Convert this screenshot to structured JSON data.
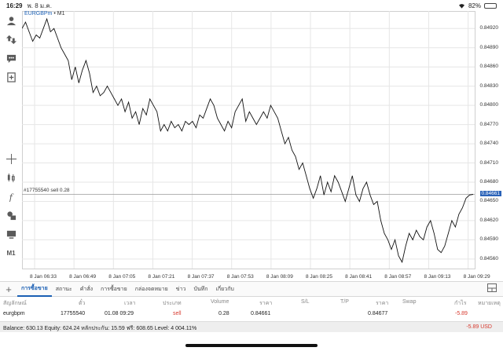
{
  "statusbar": {
    "time": "16:29",
    "date": "พ. 8 ม.ค.",
    "battery": "82%",
    "battery_level": 0.82
  },
  "left_toolbar": {
    "icons": [
      "user-icon",
      "transfer-icon",
      "chat-icon",
      "add-chart-icon",
      "crosshair-icon",
      "candles-icon",
      "function-icon",
      "objects-icon",
      "chart-type-icon"
    ],
    "timeframe": "M1"
  },
  "chart": {
    "symbol": "EURGBPm",
    "separator": "•",
    "timeframe": "M1",
    "order_label": "#17755540 sell 0.28",
    "current_price": "0.84661",
    "line_color": "#111111",
    "grid_color": "#e6e6e6"
  },
  "chart_data": {
    "type": "line",
    "title": "",
    "xlabel": "",
    "ylabel": "",
    "ylim": [
      0.8455,
      0.8494
    ],
    "y_ticks": [
      "0.84920",
      "0.84890",
      "0.84860",
      "0.84830",
      "0.84800",
      "0.84770",
      "0.84740",
      "0.84710",
      "0.84680",
      "0.84650",
      "0.84620",
      "0.84590",
      "0.84560"
    ],
    "x_ticks": [
      "8 Jan 06:33",
      "8 Jan 06:49",
      "8 Jan 07:05",
      "8 Jan 07:21",
      "8 Jan 07:37",
      "8 Jan 07:53",
      "8 Jan 08:09",
      "8 Jan 08:25",
      "8 Jan 08:41",
      "8 Jan 08:57",
      "8 Jan 09:13",
      "8 Jan 09:29"
    ],
    "order_level": 0.84661,
    "series": [
      {
        "name": "",
        "values": [
          0.8492,
          0.8493,
          0.84915,
          0.849,
          0.8491,
          0.84905,
          0.8492,
          0.84935,
          0.84915,
          0.8492,
          0.84905,
          0.8489,
          0.8488,
          0.8487,
          0.8484,
          0.8486,
          0.84835,
          0.84855,
          0.8487,
          0.8485,
          0.8482,
          0.8483,
          0.84815,
          0.8482,
          0.8483,
          0.8482,
          0.8481,
          0.848,
          0.8481,
          0.8479,
          0.84805,
          0.8478,
          0.8479,
          0.8477,
          0.84795,
          0.84785,
          0.8481,
          0.848,
          0.8479,
          0.8476,
          0.8477,
          0.8476,
          0.84775,
          0.84765,
          0.8477,
          0.8476,
          0.84775,
          0.8477,
          0.84775,
          0.84765,
          0.84785,
          0.8478,
          0.84795,
          0.8481,
          0.848,
          0.8478,
          0.8477,
          0.8476,
          0.84775,
          0.84765,
          0.8479,
          0.848,
          0.8481,
          0.84775,
          0.8479,
          0.8478,
          0.8477,
          0.8478,
          0.8479,
          0.8478,
          0.848,
          0.8479,
          0.8478,
          0.8476,
          0.8474,
          0.8475,
          0.8473,
          0.8472,
          0.847,
          0.8471,
          0.8469,
          0.8467,
          0.84655,
          0.8467,
          0.8469,
          0.8466,
          0.8468,
          0.84665,
          0.8469,
          0.8468,
          0.84665,
          0.8465,
          0.8467,
          0.8469,
          0.8466,
          0.8465,
          0.8467,
          0.8468,
          0.8466,
          0.84645,
          0.8465,
          0.8462,
          0.846,
          0.8459,
          0.84575,
          0.8459,
          0.84565,
          0.84555,
          0.8458,
          0.846,
          0.8459,
          0.84605,
          0.84595,
          0.8459,
          0.8461,
          0.8462,
          0.846,
          0.84575,
          0.8457,
          0.8458,
          0.846,
          0.8462,
          0.8461,
          0.8463,
          0.8464,
          0.84655,
          0.8466,
          0.84661
        ]
      }
    ],
    "grid": true
  },
  "tabs": {
    "add_label": "+",
    "items": [
      "การซื้อขาย",
      "สถานะ",
      "คำสั่ง",
      "การซื้อขาย",
      "กล่องจดหมาย",
      "ข่าว",
      "บันทึก",
      "เกี่ยวกับ"
    ],
    "active_index": 0
  },
  "table": {
    "headers": [
      "สัญลักษณ์",
      "ตั๋ว",
      "เวลา",
      "ประเภท",
      "Volume",
      "ราคา",
      "S/L",
      "T/P",
      "ราคา",
      "Swap",
      "กำไร",
      "หมายเหตุ"
    ],
    "row": {
      "symbol": "eurgbpm",
      "ticket": "17755540",
      "time": "01.08 09:29",
      "type": "sell",
      "volume": "0.28",
      "open_price": "0.84661",
      "sl": "",
      "tp": "",
      "price": "0.84677",
      "swap": "",
      "profit": "-5.89",
      "comment": ""
    }
  },
  "balance": {
    "text": "Balance: 630.13 Equity: 624.24 หลักประกัน: 15.59 ฟรี: 608.65 Level: 4 004.11%",
    "profit": "-5.89  USD"
  }
}
